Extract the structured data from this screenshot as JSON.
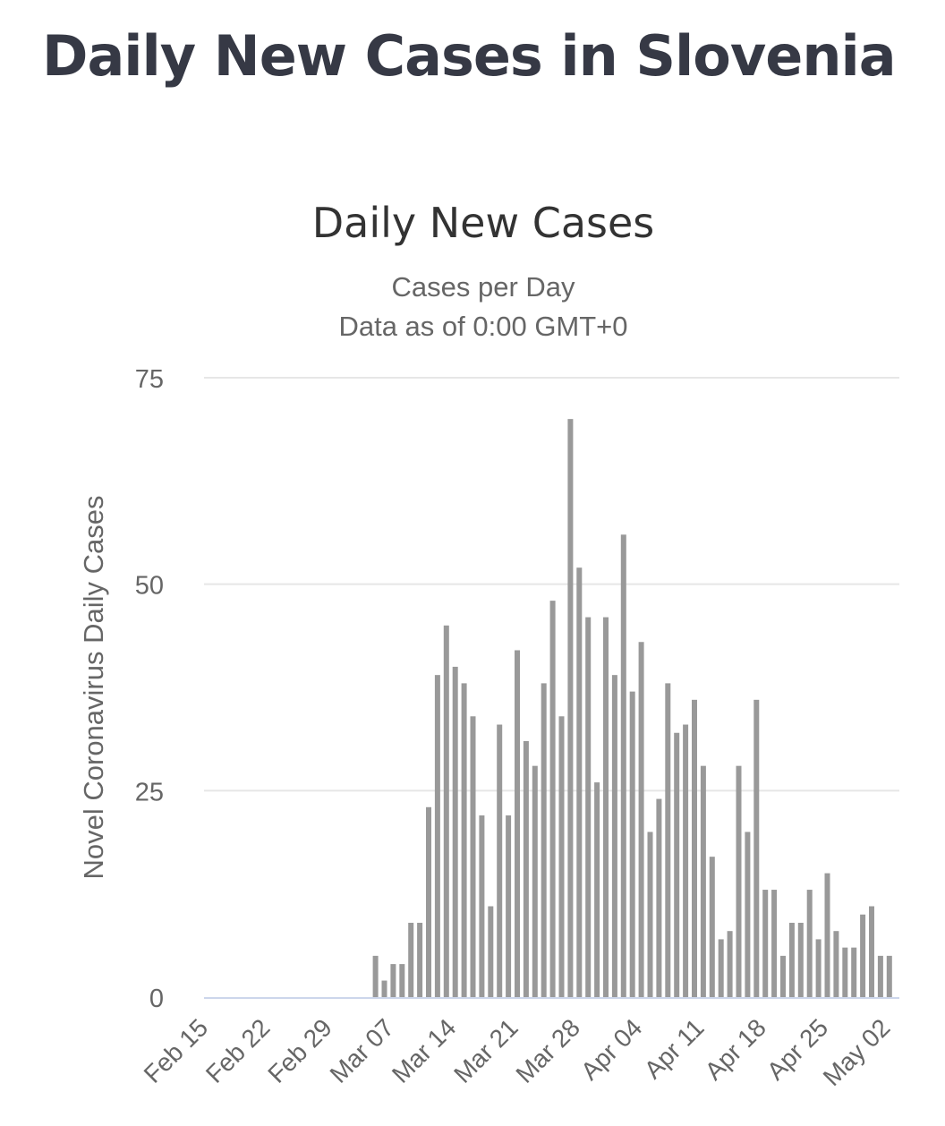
{
  "page_title": "Daily New Cases in Slovenia",
  "chart_data": {
    "type": "bar",
    "title": "Daily New Cases",
    "subtitle": [
      "Cases per Day",
      "Data as of 0:00 GMT+0"
    ],
    "xlabel": "",
    "ylabel": "Novel Coronavirus Daily Cases",
    "ylim": [
      0,
      75
    ],
    "yticks": [
      0,
      25,
      50,
      75
    ],
    "grid": true,
    "start_date": "Feb 15",
    "num_days": 78,
    "xtick_labels": [
      "Feb 15",
      "Feb 22",
      "Feb 29",
      "Mar 07",
      "Mar 14",
      "Mar 21",
      "Mar 28",
      "Apr 04",
      "Apr 11",
      "Apr 18",
      "Apr 25",
      "May 02"
    ],
    "first_nonzero_day_index": 19,
    "values_from_mar05": [
      5,
      2,
      4,
      4,
      9,
      9,
      23,
      39,
      45,
      40,
      38,
      34,
      22,
      11,
      33,
      22,
      42,
      31,
      28,
      38,
      48,
      34,
      70,
      52,
      46,
      26,
      46,
      39,
      56,
      37,
      43,
      20,
      24,
      38,
      32,
      33,
      36,
      28,
      17,
      7,
      8,
      28,
      20,
      36,
      13,
      13,
      5,
      9,
      9,
      13,
      7,
      15,
      8,
      6,
      6,
      10,
      11,
      5,
      5
    ],
    "bar_color": "#999999",
    "grid_color": "#e6e6e6",
    "axis_color": "#ccd6eb"
  }
}
